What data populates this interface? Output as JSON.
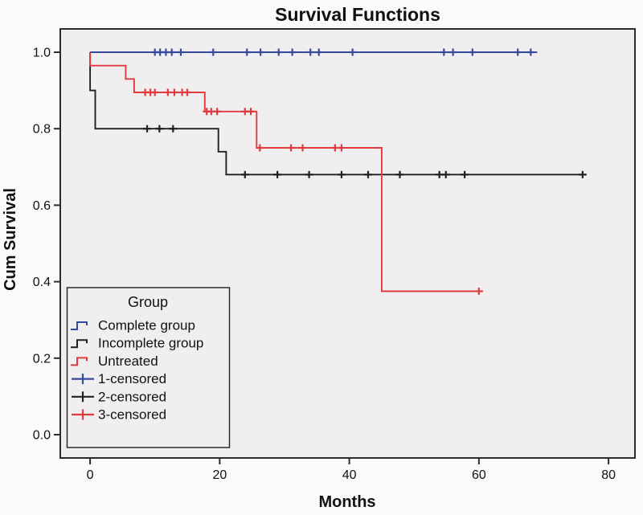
{
  "title": "Survival Functions",
  "x_axis": {
    "label": "Months",
    "ticks": [
      {
        "v": 0,
        "label": "0"
      },
      {
        "v": 20,
        "label": "20"
      },
      {
        "v": 40,
        "label": "40"
      },
      {
        "v": 60,
        "label": "60"
      },
      {
        "v": 80,
        "label": "80"
      }
    ]
  },
  "y_axis": {
    "label": "Cum Survival",
    "ticks": [
      {
        "v": 0.0,
        "label": "0.0"
      },
      {
        "v": 0.2,
        "label": "0.2"
      },
      {
        "v": 0.4,
        "label": "0.4"
      },
      {
        "v": 0.6,
        "label": "0.6"
      },
      {
        "v": 0.8,
        "label": "0.8"
      },
      {
        "v": 1.0,
        "label": "1.0"
      }
    ]
  },
  "legend": {
    "title": "Group",
    "items": [
      {
        "label": "Complete group",
        "symbol": "step",
        "color": "#35499E"
      },
      {
        "label": "Incomplete group",
        "symbol": "step",
        "color": "#212121"
      },
      {
        "label": "Untreated",
        "symbol": "step",
        "color": "#E03C40"
      },
      {
        "label": "1-censored",
        "symbol": "plus",
        "color": "#35499E"
      },
      {
        "label": "2-censored",
        "symbol": "plus",
        "color": "#212121"
      },
      {
        "label": "3-censored",
        "symbol": "plus",
        "color": "#E03C40"
      }
    ]
  },
  "colors": {
    "plot_bg": "#F0EEEE",
    "outer_bg": "#FBFAF9",
    "frame": "#2B2B2B",
    "blue": "#35499E",
    "black": "#212121",
    "red": "#E03C40"
  },
  "chart_data": {
    "type": "line",
    "subtype": "kaplan-meier-step-survival",
    "title": "Survival Functions",
    "xlabel": "Months",
    "ylabel": "Cum Survival",
    "xlim": [
      0,
      80
    ],
    "ylim": [
      0.0,
      1.0
    ],
    "grid": false,
    "legend_position": "lower-left",
    "series": [
      {
        "name": "Complete group",
        "color": "#35499E",
        "points": [
          [
            0,
            1.0
          ],
          [
            69,
            1.0
          ]
        ],
        "censored": [
          [
            10,
            1.0
          ],
          [
            10.8,
            1.0
          ],
          [
            11.7,
            1.0
          ],
          [
            12.6,
            1.0
          ],
          [
            14,
            1.0
          ],
          [
            19,
            1.0
          ],
          [
            24.2,
            1.0
          ],
          [
            26.3,
            1.0
          ],
          [
            29.1,
            1.0
          ],
          [
            31.2,
            1.0
          ],
          [
            34,
            1.0
          ],
          [
            35.3,
            1.0
          ],
          [
            40.5,
            1.0
          ],
          [
            54.6,
            1.0
          ],
          [
            56,
            1.0
          ],
          [
            59,
            1.0
          ],
          [
            66,
            1.0
          ],
          [
            68,
            1.0
          ]
        ]
      },
      {
        "name": "Incomplete group",
        "color": "#212121",
        "points": [
          [
            0,
            1.0
          ],
          [
            0,
            0.9
          ],
          [
            0.8,
            0.9
          ],
          [
            0.8,
            0.8
          ],
          [
            19.8,
            0.8
          ],
          [
            19.8,
            0.74
          ],
          [
            21,
            0.74
          ],
          [
            21,
            0.68
          ],
          [
            76.5,
            0.68
          ]
        ],
        "censored": [
          [
            8.8,
            0.8
          ],
          [
            10.7,
            0.8
          ],
          [
            12.8,
            0.8
          ],
          [
            23.9,
            0.68
          ],
          [
            28.9,
            0.68
          ],
          [
            33.8,
            0.68
          ],
          [
            38.8,
            0.68
          ],
          [
            42.9,
            0.68
          ],
          [
            47.8,
            0.68
          ],
          [
            53.9,
            0.68
          ],
          [
            54.9,
            0.68
          ],
          [
            57.8,
            0.68
          ],
          [
            76,
            0.68
          ]
        ]
      },
      {
        "name": "Untreated",
        "color": "#E03C40",
        "points": [
          [
            0,
            1.0
          ],
          [
            0,
            0.965
          ],
          [
            5.5,
            0.965
          ],
          [
            5.5,
            0.93
          ],
          [
            6.8,
            0.93
          ],
          [
            6.8,
            0.895
          ],
          [
            17.7,
            0.895
          ],
          [
            17.7,
            0.845
          ],
          [
            25.7,
            0.845
          ],
          [
            25.7,
            0.75
          ],
          [
            45,
            0.75
          ],
          [
            45,
            0.375
          ],
          [
            60.3,
            0.375
          ]
        ],
        "censored": [
          [
            8.5,
            0.895
          ],
          [
            9.3,
            0.895
          ],
          [
            10,
            0.895
          ],
          [
            12,
            0.895
          ],
          [
            13,
            0.895
          ],
          [
            14.2,
            0.895
          ],
          [
            15,
            0.895
          ],
          [
            18,
            0.845
          ],
          [
            18.7,
            0.845
          ],
          [
            19.6,
            0.845
          ],
          [
            23.9,
            0.845
          ],
          [
            24.8,
            0.845
          ],
          [
            26.2,
            0.75
          ],
          [
            31,
            0.75
          ],
          [
            32.8,
            0.75
          ],
          [
            37.8,
            0.75
          ],
          [
            38.8,
            0.75
          ],
          [
            60,
            0.375
          ]
        ]
      }
    ]
  }
}
